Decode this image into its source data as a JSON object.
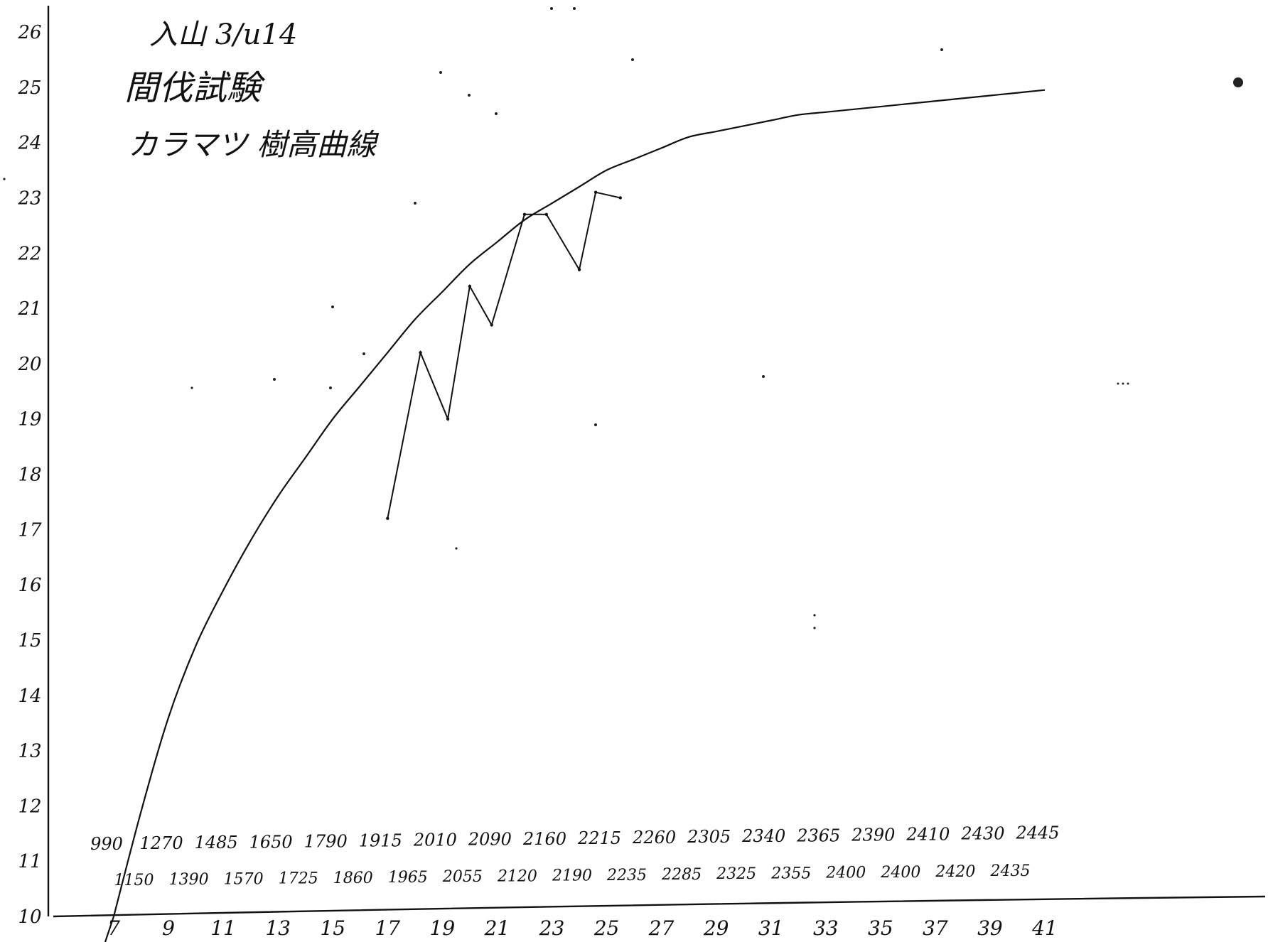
{
  "header": {
    "line1": "入山 3/u14",
    "line2": "間伐試験",
    "line3": "カラマツ 樹高曲線"
  },
  "chart_data": {
    "type": "line",
    "title": "カラマツ 樹高曲線",
    "xlabel": "",
    "ylabel": "",
    "xlim": [
      7,
      41
    ],
    "ylim": [
      10,
      26
    ],
    "x_ticks": [
      "7",
      "9",
      "11",
      "13",
      "15",
      "17",
      "19",
      "21",
      "23",
      "25",
      "27",
      "29",
      "31",
      "33",
      "35",
      "37",
      "39",
      "41"
    ],
    "y_ticks": [
      "10",
      "11",
      "12",
      "13",
      "14",
      "15",
      "16",
      "17",
      "18",
      "19",
      "20",
      "21",
      "22",
      "23",
      "24",
      "25",
      "26"
    ],
    "volume_row_upper": [
      {
        "x": 7,
        "label": "990"
      },
      {
        "x": 9,
        "label": "1270"
      },
      {
        "x": 11,
        "label": "1485"
      },
      {
        "x": 13,
        "label": "1650"
      },
      {
        "x": 15,
        "label": "1790"
      },
      {
        "x": 17,
        "label": "1915"
      },
      {
        "x": 19,
        "label": "2010"
      },
      {
        "x": 21,
        "label": "2090"
      },
      {
        "x": 23,
        "label": "2160"
      },
      {
        "x": 25,
        "label": "2215"
      },
      {
        "x": 27,
        "label": "2260"
      },
      {
        "x": 29,
        "label": "2305"
      },
      {
        "x": 31,
        "label": "2340"
      },
      {
        "x": 33,
        "label": "2365"
      },
      {
        "x": 35,
        "label": "2390"
      },
      {
        "x": 37,
        "label": "2410"
      },
      {
        "x": 39,
        "label": "2430"
      },
      {
        "x": 41,
        "label": "2445"
      }
    ],
    "volume_row_lower": [
      {
        "x": 8,
        "label": "1150"
      },
      {
        "x": 10,
        "label": "1390"
      },
      {
        "x": 12,
        "label": "1570"
      },
      {
        "x": 14,
        "label": "1725"
      },
      {
        "x": 16,
        "label": "1860"
      },
      {
        "x": 18,
        "label": "1965"
      },
      {
        "x": 20,
        "label": "2055"
      },
      {
        "x": 22,
        "label": "2120"
      },
      {
        "x": 24,
        "label": "2190"
      },
      {
        "x": 26,
        "label": "2235"
      },
      {
        "x": 28,
        "label": "2285"
      },
      {
        "x": 30,
        "label": "2325"
      },
      {
        "x": 32,
        "label": "2355"
      },
      {
        "x": 34,
        "label": "2400"
      },
      {
        "x": 36,
        "label": "2400"
      },
      {
        "x": 38,
        "label": "2420"
      },
      {
        "x": 40,
        "label": "2435"
      }
    ],
    "series": [
      {
        "kind": "fitted-curve",
        "x": [
          7,
          8,
          9,
          10,
          11,
          12,
          13,
          14,
          15,
          16,
          17,
          18,
          19,
          20,
          21,
          22,
          23,
          24,
          25,
          26,
          27,
          28,
          29,
          30,
          31,
          32,
          33,
          34,
          35,
          36,
          37,
          38,
          39,
          40,
          41
        ],
        "values": [
          10,
          11.9,
          13.6,
          14.9,
          15.9,
          16.8,
          17.6,
          18.3,
          19.0,
          19.6,
          20.2,
          20.8,
          21.3,
          21.8,
          22.2,
          22.6,
          22.9,
          23.2,
          23.5,
          23.7,
          23.9,
          24.1,
          24.2,
          24.3,
          24.4,
          24.5,
          24.55,
          24.6,
          24.65,
          24.7,
          24.75,
          24.8,
          24.85,
          24.9,
          24.95
        ]
      },
      {
        "kind": "observed",
        "x": [
          17,
          18.2,
          19.2,
          20,
          20.8,
          22,
          22.8,
          24,
          24.6,
          25.5
        ],
        "values": [
          17.2,
          20.2,
          19.0,
          21.4,
          20.7,
          22.7,
          22.7,
          21.7,
          23.1,
          23.0
        ]
      }
    ]
  }
}
